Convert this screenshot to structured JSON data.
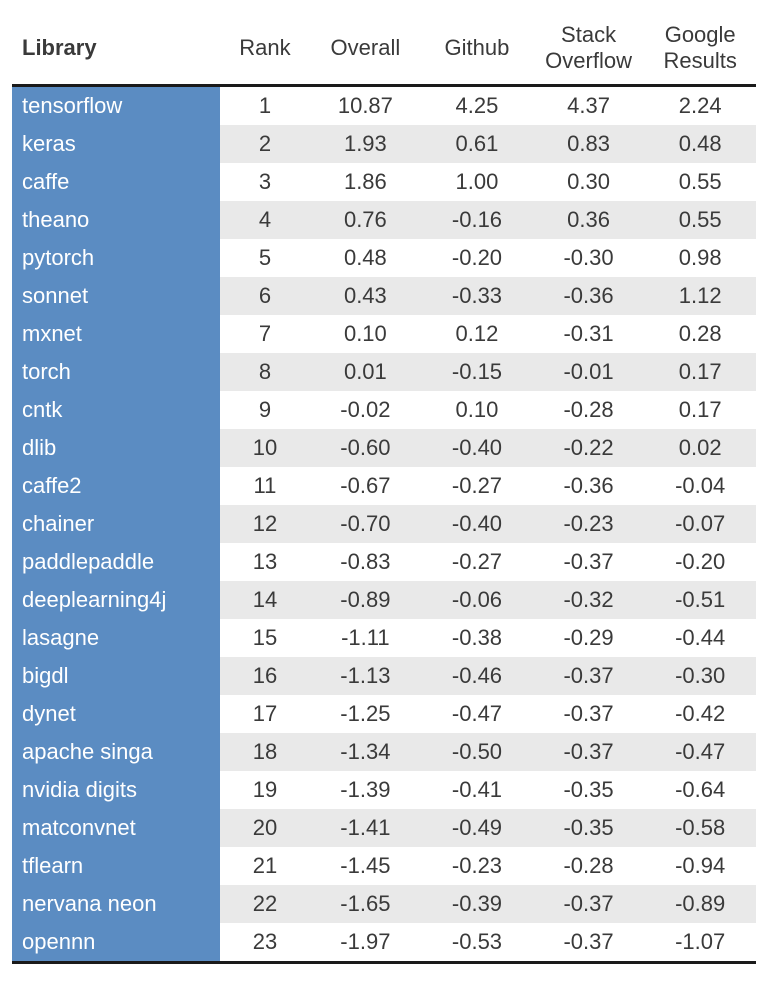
{
  "table": {
    "type": "table",
    "columns": [
      {
        "key": "library",
        "label": "Library",
        "align": "left",
        "header_bold": true
      },
      {
        "key": "rank",
        "label": "Rank",
        "align": "center",
        "header_bold": false
      },
      {
        "key": "overall",
        "label": "Overall",
        "align": "center",
        "header_bold": false
      },
      {
        "key": "github",
        "label": "Github",
        "align": "center",
        "header_bold": false
      },
      {
        "key": "stack",
        "label": "Stack\nOverflow",
        "align": "center",
        "header_bold": false
      },
      {
        "key": "google",
        "label": "Google\nResults",
        "align": "center",
        "header_bold": false
      }
    ],
    "colors": {
      "first_col_bg": "#5b8cc2",
      "first_col_text": "#ffffff",
      "row_even_bg": "#ffffff",
      "row_odd_bg": "#e9e9e9",
      "border_color": "#1a1a1a",
      "header_text": "#3a3a3a",
      "body_text": "#3a3a3a"
    },
    "font": {
      "family": "Arial",
      "size_pt": 16
    },
    "rows": [
      [
        "tensorflow",
        "1",
        "10.87",
        "4.25",
        "4.37",
        "2.24"
      ],
      [
        "keras",
        "2",
        "1.93",
        "0.61",
        "0.83",
        "0.48"
      ],
      [
        "caffe",
        "3",
        "1.86",
        "1.00",
        "0.30",
        "0.55"
      ],
      [
        "theano",
        "4",
        "0.76",
        "-0.16",
        "0.36",
        "0.55"
      ],
      [
        "pytorch",
        "5",
        "0.48",
        "-0.20",
        "-0.30",
        "0.98"
      ],
      [
        "sonnet",
        "6",
        "0.43",
        "-0.33",
        "-0.36",
        "1.12"
      ],
      [
        "mxnet",
        "7",
        "0.10",
        "0.12",
        "-0.31",
        "0.28"
      ],
      [
        "torch",
        "8",
        "0.01",
        "-0.15",
        "-0.01",
        "0.17"
      ],
      [
        "cntk",
        "9",
        "-0.02",
        "0.10",
        "-0.28",
        "0.17"
      ],
      [
        "dlib",
        "10",
        "-0.60",
        "-0.40",
        "-0.22",
        "0.02"
      ],
      [
        "caffe2",
        "11",
        "-0.67",
        "-0.27",
        "-0.36",
        "-0.04"
      ],
      [
        "chainer",
        "12",
        "-0.70",
        "-0.40",
        "-0.23",
        "-0.07"
      ],
      [
        "paddlepaddle",
        "13",
        "-0.83",
        "-0.27",
        "-0.37",
        "-0.20"
      ],
      [
        "deeplearning4j",
        "14",
        "-0.89",
        "-0.06",
        "-0.32",
        "-0.51"
      ],
      [
        "lasagne",
        "15",
        "-1.11",
        "-0.38",
        "-0.29",
        "-0.44"
      ],
      [
        "bigdl",
        "16",
        "-1.13",
        "-0.46",
        "-0.37",
        "-0.30"
      ],
      [
        "dynet",
        "17",
        "-1.25",
        "-0.47",
        "-0.37",
        "-0.42"
      ],
      [
        "apache singa",
        "18",
        "-1.34",
        "-0.50",
        "-0.37",
        "-0.47"
      ],
      [
        "nvidia digits",
        "19",
        "-1.39",
        "-0.41",
        "-0.35",
        "-0.64"
      ],
      [
        "matconvnet",
        "20",
        "-1.41",
        "-0.49",
        "-0.35",
        "-0.58"
      ],
      [
        "tflearn",
        "21",
        "-1.45",
        "-0.23",
        "-0.28",
        "-0.94"
      ],
      [
        "nervana neon",
        "22",
        "-1.65",
        "-0.39",
        "-0.37",
        "-0.89"
      ],
      [
        "opennn",
        "23",
        "-1.97",
        "-0.53",
        "-0.37",
        "-1.07"
      ]
    ]
  }
}
